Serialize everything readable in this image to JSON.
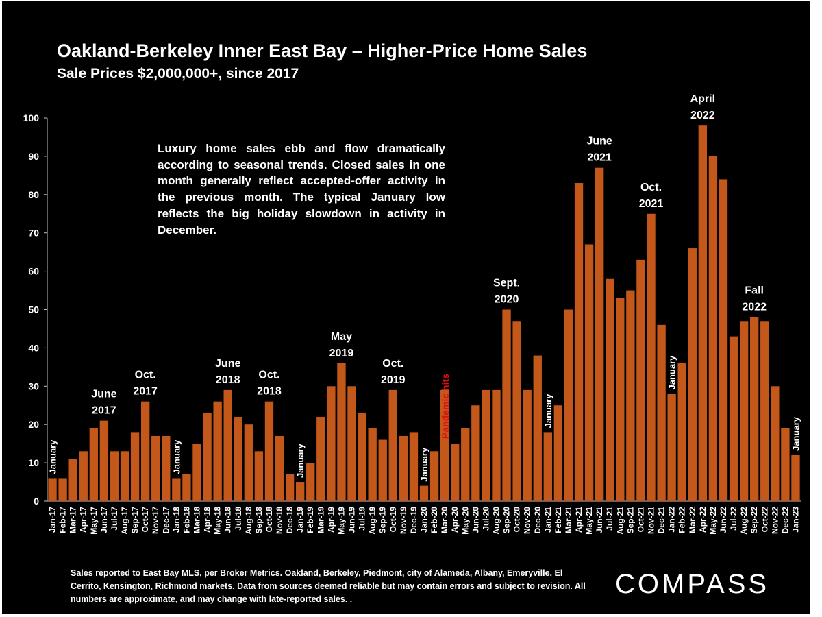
{
  "chart_data": {
    "type": "bar",
    "title": "Oakland-Berkeley Inner East Bay – Higher-Price Home Sales",
    "subtitle": "Sale Prices $2,000,000+, since 2017",
    "ylim": [
      0,
      100
    ],
    "yticks": [
      0,
      10,
      20,
      30,
      40,
      50,
      60,
      70,
      80,
      90,
      100
    ],
    "bar_color": "#c4581a",
    "grid": false,
    "categories": [
      "Jan-17",
      "Feb-17",
      "Mar-17",
      "Apr-17",
      "May-17",
      "Jun-17",
      "Jul-17",
      "Aug-17",
      "Sep-17",
      "Oct-17",
      "Nov-17",
      "Dec-17",
      "Jan-18",
      "Feb-18",
      "Mar-18",
      "Apr-18",
      "May-18",
      "Jun-18",
      "Jul-18",
      "Aug-18",
      "Sep-18",
      "Oct-18",
      "Nov-18",
      "Dec-18",
      "Jan-19",
      "Feb-19",
      "Mar-19",
      "Apr-19",
      "May-19",
      "Jun-19",
      "Jul-19",
      "Aug-19",
      "Sep-19",
      "Oct-19",
      "Nov-19",
      "Dec-19",
      "Jan-20",
      "Feb-20",
      "Mar-20",
      "Apr-20",
      "May-20",
      "Jun-20",
      "Jul-20",
      "Aug-20",
      "Sep-20",
      "Oct-20",
      "Nov-20",
      "Dec-20",
      "Jan-21",
      "Feb-21",
      "Mar-21",
      "Apr-21",
      "May-21",
      "Jun-21",
      "Jul-21",
      "Aug-21",
      "Sep-21",
      "Oct-21",
      "Nov-21",
      "Dec-21",
      "Jan-22",
      "Feb-22",
      "Mar-22",
      "Apr-22",
      "May-22",
      "Jun-22",
      "Jul-22",
      "Aug-22",
      "Sep-22",
      "Oct-22",
      "Nov-22",
      "Dec-22",
      "Jan-23"
    ],
    "values": [
      6,
      6,
      11,
      13,
      19,
      21,
      13,
      13,
      18,
      26,
      17,
      17,
      6,
      7,
      15,
      23,
      26,
      29,
      22,
      20,
      13,
      26,
      17,
      7,
      5,
      10,
      22,
      30,
      36,
      30,
      23,
      19,
      16,
      29,
      17,
      18,
      4,
      13,
      29,
      15,
      19,
      25,
      29,
      29,
      50,
      47,
      29,
      38,
      18,
      25,
      50,
      83,
      67,
      87,
      58,
      53,
      55,
      63,
      75,
      46,
      28,
      36,
      66,
      98,
      90,
      84,
      43,
      47,
      48,
      47,
      30,
      19,
      12
    ],
    "annotations": [
      {
        "lines": [
          "June",
          "2017"
        ],
        "index": 5,
        "value": 21
      },
      {
        "lines": [
          "Oct.",
          "2017"
        ],
        "index": 9,
        "value": 26
      },
      {
        "lines": [
          "June",
          "2018"
        ],
        "index": 17,
        "value": 29
      },
      {
        "lines": [
          "Oct.",
          "2018"
        ],
        "index": 21,
        "value": 26
      },
      {
        "lines": [
          "May",
          "2019"
        ],
        "index": 28,
        "value": 36
      },
      {
        "lines": [
          "Oct.",
          "2019"
        ],
        "index": 33,
        "value": 29
      },
      {
        "lines": [
          "Sept.",
          "2020"
        ],
        "index": 44,
        "value": 50
      },
      {
        "lines": [
          "June",
          "2021"
        ],
        "index": 53,
        "value": 87
      },
      {
        "lines": [
          "Oct.",
          "2021"
        ],
        "index": 58,
        "value": 75
      },
      {
        "lines": [
          "April",
          "2022"
        ],
        "index": 63,
        "value": 98
      },
      {
        "lines": [
          "Fall",
          "2022"
        ],
        "index": 68,
        "value": 48
      }
    ],
    "vertical_labels": [
      {
        "text": "January",
        "index": 0,
        "value": 6
      },
      {
        "text": "January",
        "index": 12,
        "value": 6
      },
      {
        "text": "January",
        "index": 24,
        "value": 5
      },
      {
        "text": "January",
        "index": 36,
        "value": 4
      },
      {
        "text": "January",
        "index": 48,
        "value": 18
      },
      {
        "text": "January",
        "index": 60,
        "value": 28
      },
      {
        "text": "January",
        "index": 72,
        "value": 12
      }
    ],
    "pandemic_label": {
      "text": "Pandemic hits",
      "index": 38,
      "color": "#e01010"
    }
  },
  "note": "Luxury home sales ebb and flow dramatically according to seasonal trends. Closed sales in one month generally reflect accepted-offer activity in the previous month.  The typical January low reflects the big holiday slowdown in activity in December.",
  "footnote": "Sales reported to East Bay MLS, per Broker Metrics. Oakland, Berkeley, Piedmont, city of Alameda, Albany, Emeryville, El Cerrito, Kensington, Richmond markets. Data from sources deemed reliable but may contain errors and subject to revision. All numbers are approximate, and may change with late-reported sales. .",
  "logo": "COMPASS"
}
